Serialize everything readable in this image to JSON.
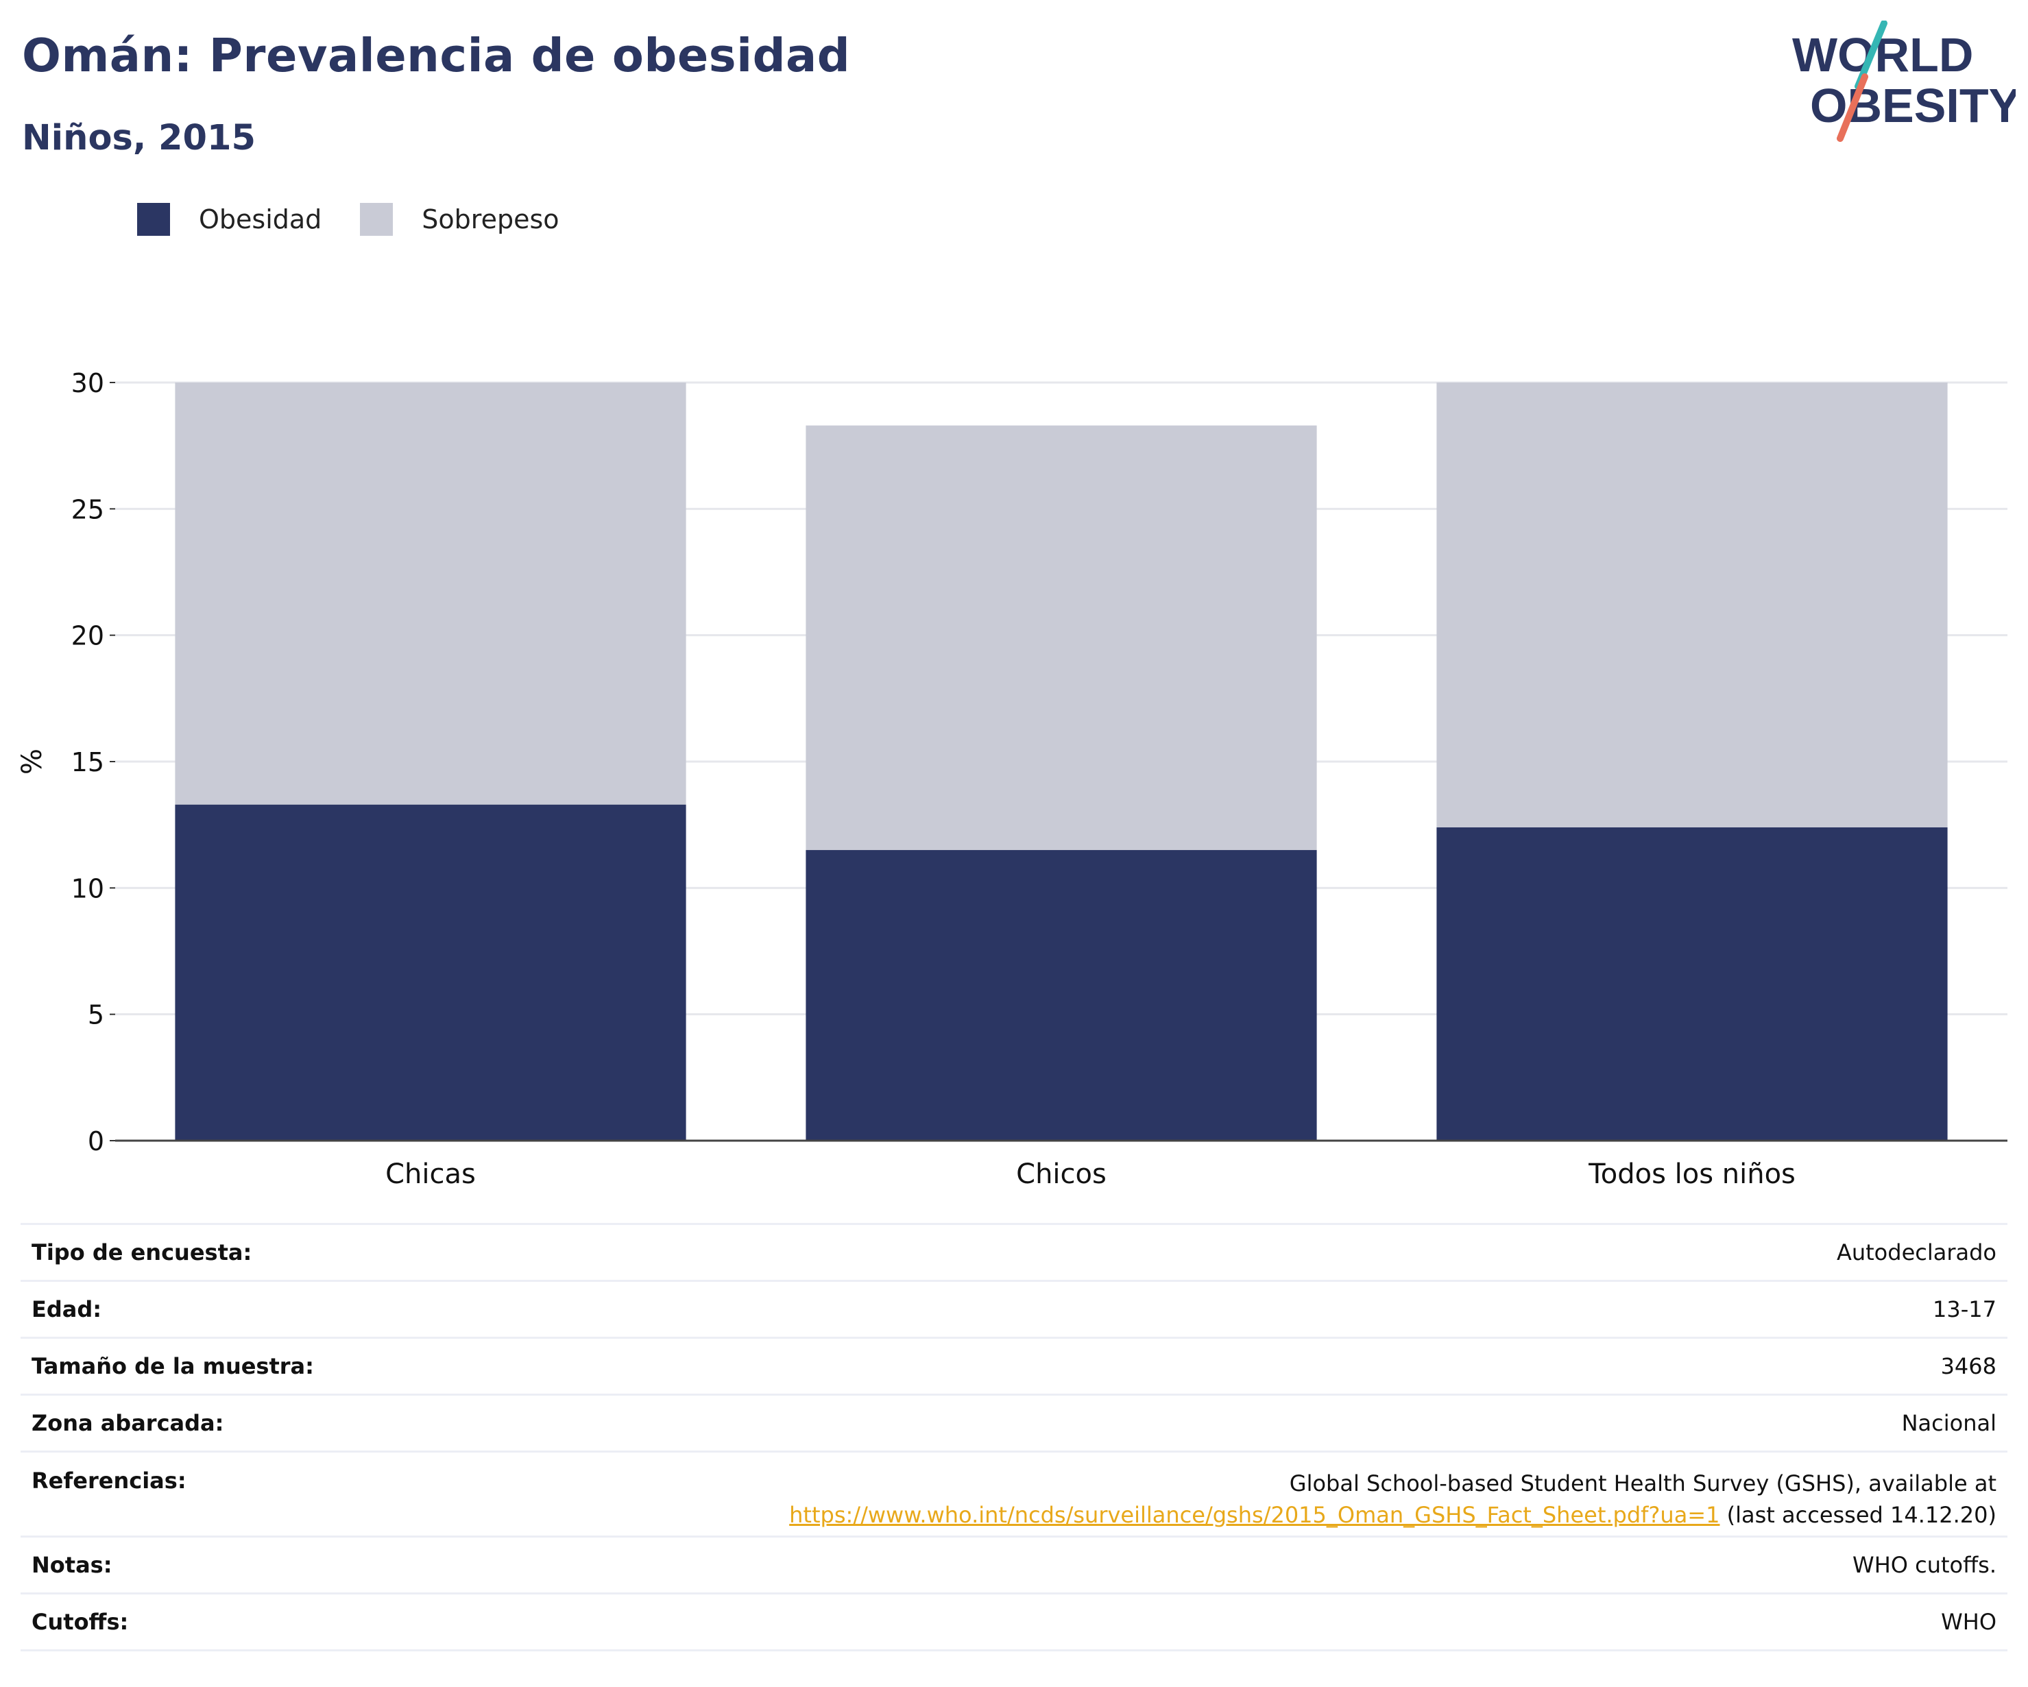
{
  "header": {
    "title": "Omán: Prevalencia de obesidad",
    "subtitle": "Niños, 2015"
  },
  "logo": {
    "line1": "WORLD",
    "line2": "OBESITY"
  },
  "colors": {
    "obesity": "#2b3663",
    "overweight": "#c9cbd6",
    "title": "#2b3661",
    "link": "#e8a81a",
    "logo_teal": "#35b6b4",
    "logo_coral": "#e8705a"
  },
  "legend": [
    {
      "label": "Obesidad",
      "color": "#2b3663"
    },
    {
      "label": "Sobrepeso",
      "color": "#c9cbd6"
    }
  ],
  "chart_data": {
    "type": "bar",
    "stacked": true,
    "categories": [
      "Chicas",
      "Chicos",
      "Todos los niños"
    ],
    "series": [
      {
        "name": "Obesidad",
        "values": [
          13.3,
          11.5,
          12.4
        ]
      },
      {
        "name": "Sobrepeso",
        "values": [
          16.7,
          16.8,
          17.6
        ]
      }
    ],
    "ylabel": "%",
    "ylim": [
      0,
      30
    ],
    "yticks": [
      0,
      5,
      10,
      15,
      20,
      25,
      30
    ],
    "grid": true
  },
  "info": {
    "survey_type_label": "Tipo de encuesta:",
    "survey_type": "Autodeclarado",
    "age_label": "Edad:",
    "age": "13-17",
    "sample_label": "Tamaño de la muestra:",
    "sample": "3468",
    "area_label": "Zona abarcada:",
    "area": "Nacional",
    "refs_label": "Referencias:",
    "refs_line1": "Global School-based Student Health Survey (GSHS), available at",
    "refs_link": "https://www.who.int/ncds/surveillance/gshs/2015_Oman_GSHS_Fact_Sheet.pdf?ua=1",
    "refs_suffix": " (last accessed 14.12.20)",
    "notes_label": "Notas:",
    "notes": "WHO cutoffs.",
    "cutoffs_label": "Cutoffs:",
    "cutoffs": "WHO"
  }
}
